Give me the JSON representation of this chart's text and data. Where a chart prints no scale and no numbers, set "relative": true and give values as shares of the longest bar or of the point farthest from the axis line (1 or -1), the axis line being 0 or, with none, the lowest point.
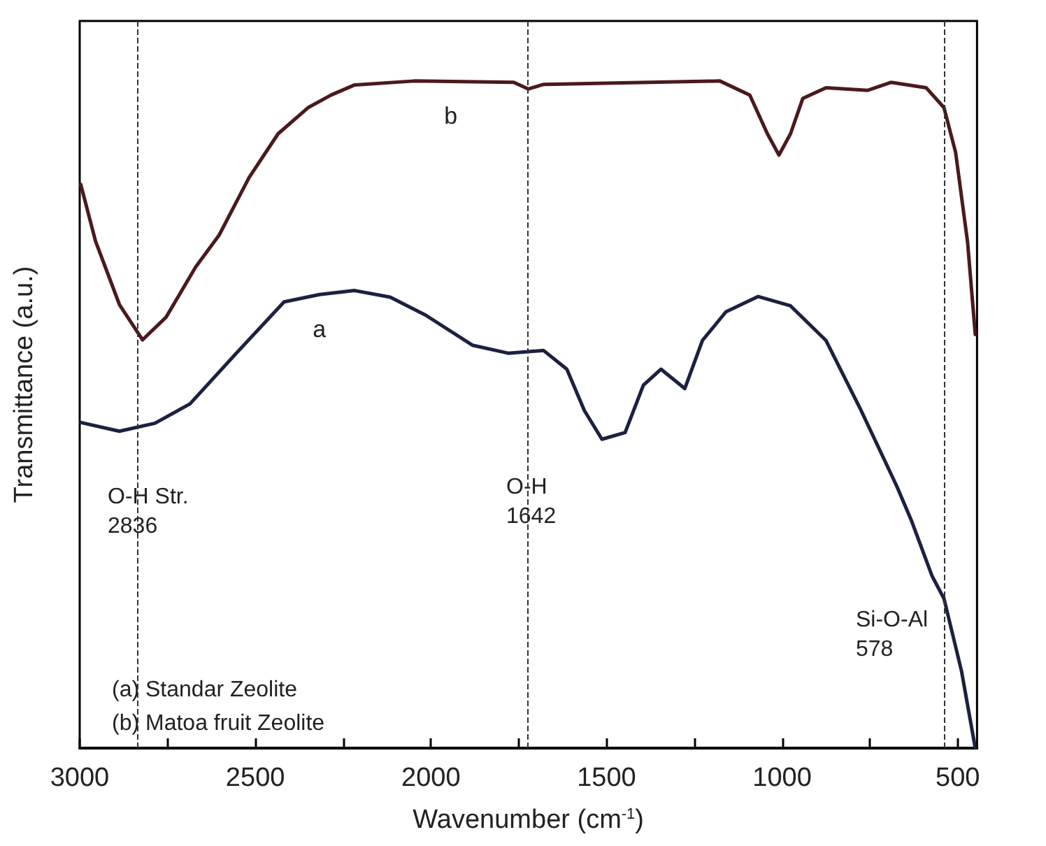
{
  "chart_data": {
    "type": "line",
    "relative": true,
    "xlabel": "Wavenumber (cm$^{-1}$)",
    "ylabel": "Transmittance (a.u.)",
    "xlim": [
      3000,
      445
    ],
    "xticks": [
      3000,
      {
        "value": 2750,
        "label": null
      },
      2500,
      {
        "value": 2250,
        "label": null
      },
      2000,
      {
        "value": 1750,
        "label": null
      },
      1500,
      {
        "value": 1250,
        "label": null
      },
      1000,
      {
        "value": 750,
        "label": null
      },
      500
    ],
    "grid": false,
    "marker": "none",
    "line_style": "solid",
    "series": [
      {
        "name": "a",
        "color": "#1c2140",
        "x": [
          2996,
          2887,
          2786,
          2686,
          2554,
          2418,
          2317,
          2218,
          2116,
          2015,
          1882,
          1780,
          1679,
          1613,
          1563,
          1513,
          1447,
          1395,
          1345,
          1277,
          1227,
          1160,
          1068,
          976,
          875,
          775,
          673,
          631,
          573,
          539,
          489,
          450
        ],
        "values": [
          0.488,
          0.475,
          0.487,
          0.516,
          0.592,
          0.669,
          0.68,
          0.686,
          0.676,
          0.649,
          0.604,
          0.592,
          0.596,
          0.568,
          0.506,
          0.463,
          0.473,
          0.544,
          0.568,
          0.539,
          0.611,
          0.654,
          0.677,
          0.663,
          0.611,
          0.506,
          0.392,
          0.34,
          0.258,
          0.224,
          0.115,
          0.0
        ]
      },
      {
        "name": "b",
        "color": "#4a1a1c",
        "x": [
          2997,
          2955,
          2887,
          2821,
          2754,
          2670,
          2603,
          2518,
          2435,
          2350,
          2284,
          2218,
          2048,
          1764,
          1723,
          1679,
          1378,
          1177,
          1092,
          1042,
          1009,
          976,
          941,
          875,
          756,
          690,
          590,
          539,
          506,
          472,
          450
        ],
        "values": [
          0.845,
          0.76,
          0.665,
          0.612,
          0.646,
          0.721,
          0.769,
          0.855,
          0.921,
          0.96,
          0.979,
          0.994,
          1.0,
          0.998,
          0.988,
          0.995,
          0.998,
          1.0,
          0.979,
          0.921,
          0.889,
          0.921,
          0.974,
          0.99,
          0.986,
          0.998,
          0.99,
          0.96,
          0.893,
          0.759,
          0.62
        ]
      }
    ],
    "ref_lines": [
      {
        "axis": "x",
        "value": 2836,
        "color": "#333333",
        "line_style": "dashed"
      },
      {
        "axis": "x",
        "value": 1725,
        "color": "#333333",
        "line_style": "dashed"
      },
      {
        "axis": "x",
        "value": 539,
        "color": "#333333",
        "line_style": "dashed"
      }
    ],
    "annotations": [
      "O-H Str.\n2836",
      "O-H\n1642",
      "Si-O-Al\n578",
      "(a) Standar Zeolite",
      "(b) Matoa fruit Zeolite"
    ]
  }
}
